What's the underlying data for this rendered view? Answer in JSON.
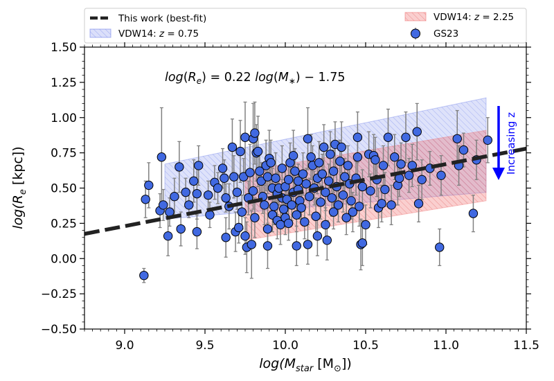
{
  "chart_data": {
    "type": "scatter",
    "title": "",
    "xlabel_parts": {
      "pre": "log(M",
      "sub": "star",
      "unit": " [M",
      "unit_sub": "⊙",
      "post": "])"
    },
    "ylabel_parts": {
      "pre": "log(R",
      "sub": "e",
      "post": " [kpc])"
    },
    "xlim": [
      8.75,
      11.5
    ],
    "ylim": [
      -0.5,
      1.5
    ],
    "x_ticks": [
      "9.0",
      "9.5",
      "10.0",
      "10.5",
      "11.0",
      "11.5"
    ],
    "y_ticks": [
      "−0.50",
      "−0.25",
      "0.00",
      "0.25",
      "0.50",
      "0.75",
      "1.00",
      "1.25",
      "1.50"
    ],
    "annotation": {
      "equation": "log(Rₑ) = 0.22 log(M∗) − 1.75",
      "arrow_label": "Increasing z",
      "arrow_color": "#0000ff"
    },
    "legend": {
      "placement": "top (above axes), 2 columns",
      "entries": [
        {
          "label": "This work (best-fit)",
          "style": "dashed-line",
          "color": "#222222"
        },
        {
          "label": "VDW14: z = 0.75",
          "style": "hatched-band",
          "color": "#5a6ee6"
        },
        {
          "label": "VDW14: z = 2.25",
          "style": "hatched-band",
          "color": "#ee6060"
        },
        {
          "label": "GS23",
          "style": "marker-errorbar",
          "color": "#4169e1"
        }
      ]
    },
    "series": [
      {
        "name": "This work (best-fit)",
        "kind": "line",
        "slope": 0.22,
        "intercept": -1.75,
        "x": [
          8.75,
          11.5
        ],
        "color": "#222222"
      },
      {
        "name": "VDW14: z = 0.75",
        "kind": "band",
        "color": "#5a6ee6",
        "x": [
          9.25,
          11.25
        ],
        "upper": [
          0.67,
          1.14
        ],
        "lower": [
          0.28,
          0.47
        ]
      },
      {
        "name": "VDW14: z = 2.25",
        "kind": "band",
        "color": "#ee6060",
        "x": [
          9.75,
          11.25
        ],
        "upper": [
          0.62,
          0.91
        ],
        "lower": [
          0.13,
          0.41
        ]
      },
      {
        "name": "GS23",
        "kind": "points",
        "color": "#4169e1",
        "points": [
          [
            9.12,
            -0.12,
            0.05
          ],
          [
            9.13,
            0.42,
            0.13
          ],
          [
            9.15,
            0.52,
            0.16
          ],
          [
            9.22,
            0.34,
            0.12
          ],
          [
            9.23,
            0.72,
            0.35
          ],
          [
            9.24,
            0.38,
            0.11
          ],
          [
            9.27,
            0.16,
            0.14
          ],
          [
            9.28,
            0.33,
            0.1
          ],
          [
            9.31,
            0.44,
            0.13
          ],
          [
            9.34,
            0.65,
            0.18
          ],
          [
            9.35,
            0.21,
            0.12
          ],
          [
            9.38,
            0.47,
            0.1
          ],
          [
            9.4,
            0.38,
            0.09
          ],
          [
            9.43,
            0.55,
            0.15
          ],
          [
            9.45,
            0.19,
            0.12
          ],
          [
            9.45,
            0.46,
            0.18
          ],
          [
            9.46,
            0.66,
            0.14
          ],
          [
            9.52,
            0.45,
            0.1
          ],
          [
            9.53,
            0.31,
            0.09
          ],
          [
            9.56,
            0.54,
            0.12
          ],
          [
            9.58,
            0.5,
            0.11
          ],
          [
            9.61,
            0.64,
            0.14
          ],
          [
            9.62,
            0.57,
            0.13
          ],
          [
            9.63,
            0.43,
            0.1
          ],
          [
            9.63,
            0.15,
            0.14
          ],
          [
            9.65,
            0.37,
            0.16
          ],
          [
            9.67,
            0.79,
            0.2
          ],
          [
            9.68,
            0.58,
            0.15
          ],
          [
            9.69,
            0.19,
            0.14
          ],
          [
            9.7,
            0.47,
            0.12
          ],
          [
            9.71,
            0.22,
            0.11
          ],
          [
            9.72,
            0.76,
            0.22
          ],
          [
            9.73,
            0.33,
            0.12
          ],
          [
            9.74,
            0.58,
            0.13
          ],
          [
            9.75,
            0.86,
            0.25
          ],
          [
            9.75,
            0.16,
            0.13
          ],
          [
            9.76,
            0.08,
            0.18
          ],
          [
            9.77,
            0.43,
            0.12
          ],
          [
            9.78,
            0.61,
            0.2
          ],
          [
            9.79,
            0.1,
            0.24
          ],
          [
            9.8,
            0.85,
            0.25
          ],
          [
            9.8,
            0.48,
            0.13
          ],
          [
            9.81,
            0.89,
            0.22
          ],
          [
            9.81,
            0.29,
            0.14
          ],
          [
            9.82,
            0.75,
            0.2
          ],
          [
            9.83,
            0.76,
            0.25
          ],
          [
            9.84,
            0.62,
            0.15
          ],
          [
            9.85,
            0.55,
            0.13
          ],
          [
            9.86,
            0.44,
            0.12
          ],
          [
            9.87,
            0.38,
            0.14
          ],
          [
            9.88,
            0.66,
            0.18
          ],
          [
            9.89,
            0.58,
            0.12
          ],
          [
            9.89,
            0.09,
            0.16
          ],
          [
            9.89,
            0.21,
            0.15
          ],
          [
            9.9,
            0.71,
            0.2
          ],
          [
            9.91,
            0.68,
            0.16
          ],
          [
            9.92,
            0.5,
            0.14
          ],
          [
            9.92,
            0.31,
            0.12
          ],
          [
            9.93,
            0.37,
            0.13
          ],
          [
            9.94,
            0.57,
            0.18
          ],
          [
            9.95,
            0.27,
            0.13
          ],
          [
            9.95,
            0.46,
            0.15
          ],
          [
            9.96,
            0.5,
            0.12
          ],
          [
            9.97,
            0.24,
            0.14
          ],
          [
            9.98,
            0.43,
            0.13
          ],
          [
            9.98,
            0.64,
            0.16
          ],
          [
            9.99,
            0.35,
            0.1
          ],
          [
            10.0,
            0.29,
            0.12
          ],
          [
            10.0,
            0.51,
            0.15
          ],
          [
            10.01,
            0.42,
            0.13
          ],
          [
            10.02,
            0.56,
            0.14
          ],
          [
            10.02,
            0.25,
            0.12
          ],
          [
            10.03,
            0.68,
            0.14
          ],
          [
            10.04,
            0.38,
            0.11
          ],
          [
            10.05,
            0.73,
            0.18
          ],
          [
            10.05,
            0.47,
            0.12
          ],
          [
            10.06,
            0.62,
            0.16
          ],
          [
            10.07,
            0.09,
            0.14
          ],
          [
            10.07,
            0.31,
            0.12
          ],
          [
            10.08,
            0.55,
            0.12
          ],
          [
            10.08,
            0.49,
            0.11
          ],
          [
            10.09,
            0.41,
            0.13
          ],
          [
            10.1,
            0.36,
            0.1
          ],
          [
            10.11,
            0.6,
            0.15
          ],
          [
            10.12,
            0.26,
            0.12
          ],
          [
            10.13,
            0.53,
            0.11
          ],
          [
            10.14,
            0.85,
            0.22
          ],
          [
            10.14,
            0.1,
            0.14
          ],
          [
            10.15,
            0.44,
            0.13
          ],
          [
            10.16,
            0.72,
            0.16
          ],
          [
            10.17,
            0.66,
            0.14
          ],
          [
            10.18,
            0.5,
            0.12
          ],
          [
            10.19,
            0.3,
            0.13
          ],
          [
            10.2,
            0.57,
            0.11
          ],
          [
            10.2,
            0.16,
            0.14
          ],
          [
            10.21,
            0.68,
            0.15
          ],
          [
            10.22,
            0.4,
            0.12
          ],
          [
            10.23,
            0.6,
            0.14
          ],
          [
            10.24,
            0.79,
            0.16
          ],
          [
            10.25,
            0.47,
            0.13
          ],
          [
            10.25,
            0.24,
            0.12
          ],
          [
            10.26,
            0.13,
            0.14
          ],
          [
            10.27,
            0.55,
            0.12
          ],
          [
            10.28,
            0.74,
            0.16
          ],
          [
            10.29,
            0.43,
            0.13
          ],
          [
            10.3,
            0.33,
            0.12
          ],
          [
            10.3,
            0.62,
            0.15
          ],
          [
            10.31,
            0.81,
            0.16
          ],
          [
            10.32,
            0.51,
            0.13
          ],
          [
            10.33,
            0.38,
            0.12
          ],
          [
            10.34,
            0.69,
            0.15
          ],
          [
            10.35,
            0.79,
            0.18
          ],
          [
            10.36,
            0.45,
            0.12
          ],
          [
            10.37,
            0.58,
            0.13
          ],
          [
            10.38,
            0.29,
            0.12
          ],
          [
            10.39,
            0.66,
            0.14
          ],
          [
            10.4,
            0.53,
            0.15
          ],
          [
            10.41,
            0.41,
            0.13
          ],
          [
            10.42,
            0.33,
            0.14
          ],
          [
            10.44,
            0.57,
            0.12
          ],
          [
            10.45,
            0.86,
            0.18
          ],
          [
            10.45,
            0.72,
            0.16
          ],
          [
            10.46,
            0.37,
            0.14
          ],
          [
            10.47,
            0.1,
            0.18
          ],
          [
            10.48,
            0.11,
            0.16
          ],
          [
            10.48,
            0.51,
            0.12
          ],
          [
            10.5,
            0.24,
            0.14
          ],
          [
            10.52,
            0.74,
            0.16
          ],
          [
            10.53,
            0.48,
            0.12
          ],
          [
            10.55,
            0.73,
            0.15
          ],
          [
            10.56,
            0.7,
            0.16
          ],
          [
            10.57,
            0.56,
            0.12
          ],
          [
            10.58,
            0.36,
            0.14
          ],
          [
            10.6,
            0.39,
            0.13
          ],
          [
            10.61,
            0.66,
            0.14
          ],
          [
            10.62,
            0.49,
            0.12
          ],
          [
            10.64,
            0.86,
            0.2
          ],
          [
            10.66,
            0.38,
            0.14
          ],
          [
            10.68,
            0.72,
            0.16
          ],
          [
            10.7,
            0.52,
            0.14
          ],
          [
            10.71,
            0.57,
            0.13
          ],
          [
            10.72,
            0.67,
            0.15
          ],
          [
            10.75,
            0.86,
            0.18
          ],
          [
            10.77,
            0.59,
            0.12
          ],
          [
            10.79,
            0.66,
            0.15
          ],
          [
            10.82,
            0.9,
            0.2
          ],
          [
            10.83,
            0.39,
            0.13
          ],
          [
            10.85,
            0.56,
            0.14
          ],
          [
            10.9,
            0.64,
            0.12
          ],
          [
            10.96,
            0.08,
            0.13
          ],
          [
            10.97,
            0.59,
            0.14
          ],
          [
            11.07,
            0.85,
            0.2
          ],
          [
            11.08,
            0.66,
            0.14
          ],
          [
            11.11,
            0.77,
            0.12
          ],
          [
            11.17,
            0.32,
            0.13
          ],
          [
            11.19,
            0.7,
            0.14
          ],
          [
            11.26,
            0.84,
            0.16
          ]
        ]
      }
    ]
  }
}
